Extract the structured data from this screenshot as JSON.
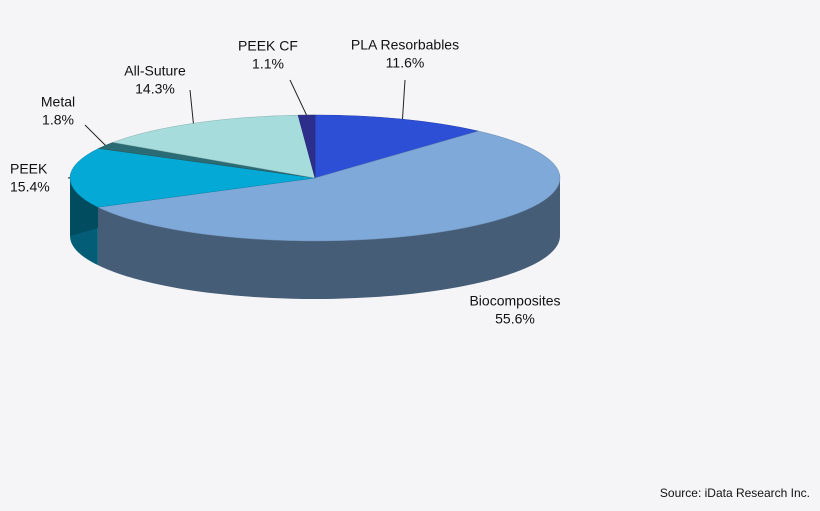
{
  "chart_data": {
    "type": "pie",
    "categories": [
      "PLA Resorbables",
      "Biocomposites",
      "PEEK",
      "Metal",
      "All-Suture",
      "PEEK CF"
    ],
    "values": [
      11.6,
      55.6,
      15.4,
      1.8,
      14.3,
      1.1
    ],
    "value_labels": [
      "11.6%",
      "55.6%",
      "15.4%",
      "1.8%",
      "14.3%",
      "1.1%"
    ],
    "colors": [
      "#2c4fd6",
      "#7fa9d8",
      "#05a9d6",
      "#2b6c74",
      "#a6dcdc",
      "#2d2e8c"
    ],
    "source": "Source: iData Research Inc."
  }
}
